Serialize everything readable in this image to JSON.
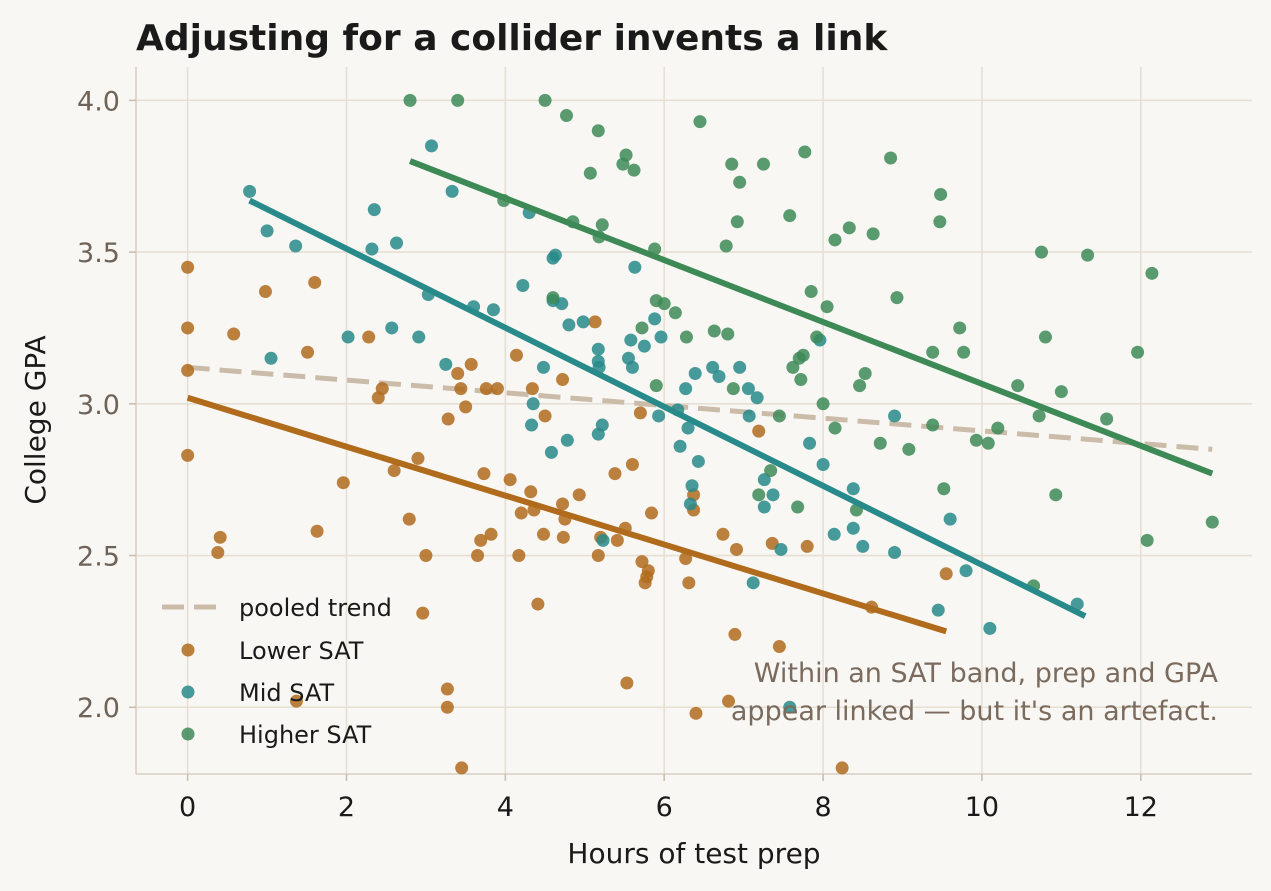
{
  "chart_data": {
    "type": "scatter",
    "title": "Adjusting for a collider invents a link",
    "xlabel": "Hours of test prep",
    "ylabel": "College GPA",
    "xlim": [
      -0.65,
      13.4
    ],
    "ylim": [
      1.78,
      4.11
    ],
    "xticks": [
      0,
      2,
      4,
      6,
      8,
      10,
      12
    ],
    "yticks": [
      2.0,
      2.5,
      3.0,
      3.5,
      4.0
    ],
    "ytick_labels": [
      "2.0",
      "2.5",
      "3.0",
      "3.5",
      "4.0"
    ],
    "grid": true,
    "legend_position": "lower-left",
    "annotation": [
      "Within an SAT band, prep and GPA",
      "appear linked — but it's an artefact."
    ],
    "pooled_trend": {
      "name": "pooled trend",
      "color": "#cbbcaa",
      "x": [
        0,
        12.9
      ],
      "y": [
        3.12,
        2.85
      ]
    },
    "series": [
      {
        "name": "Lower SAT",
        "color": "#b06b1c",
        "fit": {
          "x": [
            0,
            9.55
          ],
          "y": [
            3.02,
            2.25
          ]
        },
        "points": [
          [
            0.0,
            3.45
          ],
          [
            0.0,
            3.25
          ],
          [
            0.0,
            3.11
          ],
          [
            0.0,
            2.83
          ],
          [
            0.38,
            2.51
          ],
          [
            0.41,
            2.56
          ],
          [
            0.58,
            3.23
          ],
          [
            0.98,
            3.37
          ],
          [
            1.37,
            2.02
          ],
          [
            1.51,
            3.17
          ],
          [
            1.6,
            3.4
          ],
          [
            1.63,
            2.58
          ],
          [
            1.96,
            2.74
          ],
          [
            2.28,
            3.22
          ],
          [
            2.4,
            3.02
          ],
          [
            2.45,
            3.05
          ],
          [
            2.6,
            2.78
          ],
          [
            2.79,
            2.62
          ],
          [
            2.9,
            2.82
          ],
          [
            3.0,
            2.5
          ],
          [
            2.96,
            2.31
          ],
          [
            3.27,
            2.06
          ],
          [
            3.27,
            2.0
          ],
          [
            3.28,
            2.95
          ],
          [
            3.4,
            3.1
          ],
          [
            3.44,
            3.05
          ],
          [
            3.45,
            1.8
          ],
          [
            3.5,
            2.99
          ],
          [
            3.57,
            3.13
          ],
          [
            3.65,
            2.5
          ],
          [
            3.69,
            2.55
          ],
          [
            3.73,
            2.77
          ],
          [
            3.76,
            3.05
          ],
          [
            3.82,
            2.57
          ],
          [
            3.9,
            3.05
          ],
          [
            4.06,
            2.75
          ],
          [
            4.14,
            3.16
          ],
          [
            4.17,
            2.5
          ],
          [
            4.2,
            2.64
          ],
          [
            4.32,
            2.71
          ],
          [
            4.34,
            3.05
          ],
          [
            4.36,
            2.65
          ],
          [
            4.41,
            2.34
          ],
          [
            4.48,
            2.57
          ],
          [
            4.5,
            2.96
          ],
          [
            4.72,
            2.67
          ],
          [
            4.72,
            3.08
          ],
          [
            4.73,
            2.56
          ],
          [
            4.75,
            2.62
          ],
          [
            4.93,
            2.7
          ],
          [
            5.13,
            3.27
          ],
          [
            5.17,
            2.5
          ],
          [
            5.2,
            2.56
          ],
          [
            5.38,
            2.77
          ],
          [
            5.41,
            2.55
          ],
          [
            5.51,
            2.59
          ],
          [
            5.53,
            2.08
          ],
          [
            5.6,
            2.8
          ],
          [
            5.7,
            2.97
          ],
          [
            5.72,
            2.48
          ],
          [
            5.76,
            2.41
          ],
          [
            5.78,
            2.43
          ],
          [
            5.8,
            2.45
          ],
          [
            5.84,
            2.64
          ],
          [
            6.27,
            2.49
          ],
          [
            6.31,
            2.41
          ],
          [
            6.37,
            2.65
          ],
          [
            6.37,
            2.7
          ],
          [
            6.4,
            1.98
          ],
          [
            6.74,
            2.57
          ],
          [
            6.81,
            2.02
          ],
          [
            6.89,
            2.24
          ],
          [
            6.91,
            2.52
          ],
          [
            7.19,
            2.91
          ],
          [
            7.36,
            2.54
          ],
          [
            7.45,
            2.2
          ],
          [
            7.8,
            2.53
          ],
          [
            8.24,
            1.8
          ],
          [
            8.61,
            2.33
          ],
          [
            9.55,
            2.44
          ]
        ]
      },
      {
        "name": "Mid SAT",
        "color": "#288a8a",
        "fit": {
          "x": [
            0.78,
            11.3
          ],
          "y": [
            3.67,
            2.3
          ]
        },
        "points": [
          [
            0.78,
            3.7
          ],
          [
            1.0,
            3.57
          ],
          [
            1.05,
            3.15
          ],
          [
            1.36,
            3.52
          ],
          [
            2.02,
            3.22
          ],
          [
            2.32,
            3.51
          ],
          [
            2.35,
            3.64
          ],
          [
            2.57,
            3.25
          ],
          [
            2.63,
            3.53
          ],
          [
            2.91,
            3.22
          ],
          [
            3.03,
            3.36
          ],
          [
            3.07,
            3.85
          ],
          [
            3.25,
            3.13
          ],
          [
            3.33,
            3.7
          ],
          [
            3.6,
            3.32
          ],
          [
            3.85,
            3.31
          ],
          [
            4.22,
            3.39
          ],
          [
            4.3,
            3.63
          ],
          [
            4.33,
            2.93
          ],
          [
            4.35,
            3.0
          ],
          [
            4.48,
            3.12
          ],
          [
            4.58,
            2.84
          ],
          [
            4.6,
            3.34
          ],
          [
            4.6,
            3.48
          ],
          [
            4.63,
            3.49
          ],
          [
            4.71,
            3.33
          ],
          [
            4.78,
            2.88
          ],
          [
            4.8,
            3.26
          ],
          [
            4.98,
            3.27
          ],
          [
            5.17,
            3.18
          ],
          [
            5.17,
            3.14
          ],
          [
            5.18,
            3.12
          ],
          [
            5.17,
            2.9
          ],
          [
            5.22,
            2.93
          ],
          [
            5.23,
            2.55
          ],
          [
            5.55,
            3.15
          ],
          [
            5.58,
            3.21
          ],
          [
            5.6,
            3.12
          ],
          [
            5.63,
            3.45
          ],
          [
            5.75,
            3.19
          ],
          [
            5.88,
            3.28
          ],
          [
            5.93,
            2.96
          ],
          [
            5.96,
            3.22
          ],
          [
            6.17,
            2.98
          ],
          [
            6.2,
            2.86
          ],
          [
            6.27,
            3.05
          ],
          [
            6.3,
            2.92
          ],
          [
            6.33,
            2.67
          ],
          [
            6.35,
            2.73
          ],
          [
            6.39,
            3.1
          ],
          [
            6.43,
            2.81
          ],
          [
            6.61,
            3.12
          ],
          [
            6.69,
            3.09
          ],
          [
            6.95,
            3.12
          ],
          [
            7.06,
            3.05
          ],
          [
            7.07,
            2.96
          ],
          [
            7.12,
            2.41
          ],
          [
            7.17,
            3.02
          ],
          [
            7.26,
            2.75
          ],
          [
            7.26,
            2.66
          ],
          [
            7.37,
            2.7
          ],
          [
            7.47,
            2.52
          ],
          [
            7.58,
            2.0
          ],
          [
            7.83,
            2.87
          ],
          [
            7.96,
            3.21
          ],
          [
            8.0,
            2.8
          ],
          [
            8.14,
            2.57
          ],
          [
            8.38,
            2.72
          ],
          [
            8.38,
            2.59
          ],
          [
            8.5,
            2.53
          ],
          [
            8.9,
            2.96
          ],
          [
            8.9,
            2.51
          ],
          [
            9.45,
            2.32
          ],
          [
            9.6,
            2.62
          ],
          [
            9.8,
            2.45
          ],
          [
            10.1,
            2.26
          ],
          [
            11.2,
            2.34
          ]
        ]
      },
      {
        "name": "Higher SAT",
        "color": "#3d8a57",
        "fit": {
          "x": [
            2.8,
            12.9
          ],
          "y": [
            3.8,
            2.77
          ]
        },
        "points": [
          [
            2.8,
            4.0
          ],
          [
            3.4,
            4.0
          ],
          [
            3.98,
            3.67
          ],
          [
            4.5,
            4.0
          ],
          [
            4.77,
            3.95
          ],
          [
            4.85,
            3.6
          ],
          [
            4.6,
            3.35
          ],
          [
            5.07,
            3.76
          ],
          [
            5.17,
            3.9
          ],
          [
            5.18,
            3.55
          ],
          [
            5.22,
            3.59
          ],
          [
            5.48,
            3.79
          ],
          [
            5.52,
            3.82
          ],
          [
            5.62,
            3.77
          ],
          [
            5.72,
            3.25
          ],
          [
            5.88,
            3.51
          ],
          [
            5.9,
            3.06
          ],
          [
            5.9,
            3.34
          ],
          [
            6.0,
            3.33
          ],
          [
            6.14,
            3.3
          ],
          [
            6.28,
            3.22
          ],
          [
            6.45,
            3.93
          ],
          [
            6.63,
            3.24
          ],
          [
            6.78,
            3.52
          ],
          [
            6.8,
            3.23
          ],
          [
            6.85,
            3.79
          ],
          [
            6.87,
            3.05
          ],
          [
            6.92,
            3.6
          ],
          [
            6.95,
            3.73
          ],
          [
            7.19,
            2.7
          ],
          [
            7.25,
            3.79
          ],
          [
            7.34,
            2.78
          ],
          [
            7.45,
            2.96
          ],
          [
            7.58,
            3.62
          ],
          [
            7.62,
            3.12
          ],
          [
            7.68,
            2.66
          ],
          [
            7.7,
            3.15
          ],
          [
            7.72,
            3.08
          ],
          [
            7.75,
            3.16
          ],
          [
            7.77,
            3.83
          ],
          [
            7.85,
            3.37
          ],
          [
            7.92,
            3.22
          ],
          [
            8.0,
            3.0
          ],
          [
            8.05,
            3.32
          ],
          [
            8.15,
            3.54
          ],
          [
            8.15,
            2.92
          ],
          [
            8.33,
            3.58
          ],
          [
            8.42,
            2.65
          ],
          [
            8.46,
            3.06
          ],
          [
            8.53,
            3.1
          ],
          [
            8.63,
            3.56
          ],
          [
            8.72,
            2.87
          ],
          [
            8.85,
            3.81
          ],
          [
            8.93,
            3.35
          ],
          [
            9.08,
            2.85
          ],
          [
            9.38,
            3.17
          ],
          [
            9.38,
            2.93
          ],
          [
            9.47,
            3.6
          ],
          [
            9.48,
            3.69
          ],
          [
            9.52,
            2.72
          ],
          [
            9.72,
            3.25
          ],
          [
            9.77,
            3.17
          ],
          [
            9.93,
            2.88
          ],
          [
            10.08,
            2.87
          ],
          [
            10.2,
            2.92
          ],
          [
            10.45,
            3.06
          ],
          [
            10.65,
            2.4
          ],
          [
            10.72,
            2.96
          ],
          [
            10.75,
            3.5
          ],
          [
            10.8,
            3.22
          ],
          [
            10.93,
            2.7
          ],
          [
            11.0,
            3.04
          ],
          [
            11.33,
            3.49
          ],
          [
            11.57,
            2.95
          ],
          [
            11.96,
            3.17
          ],
          [
            12.08,
            2.55
          ],
          [
            12.14,
            3.43
          ],
          [
            12.9,
            2.61
          ]
        ]
      }
    ]
  }
}
